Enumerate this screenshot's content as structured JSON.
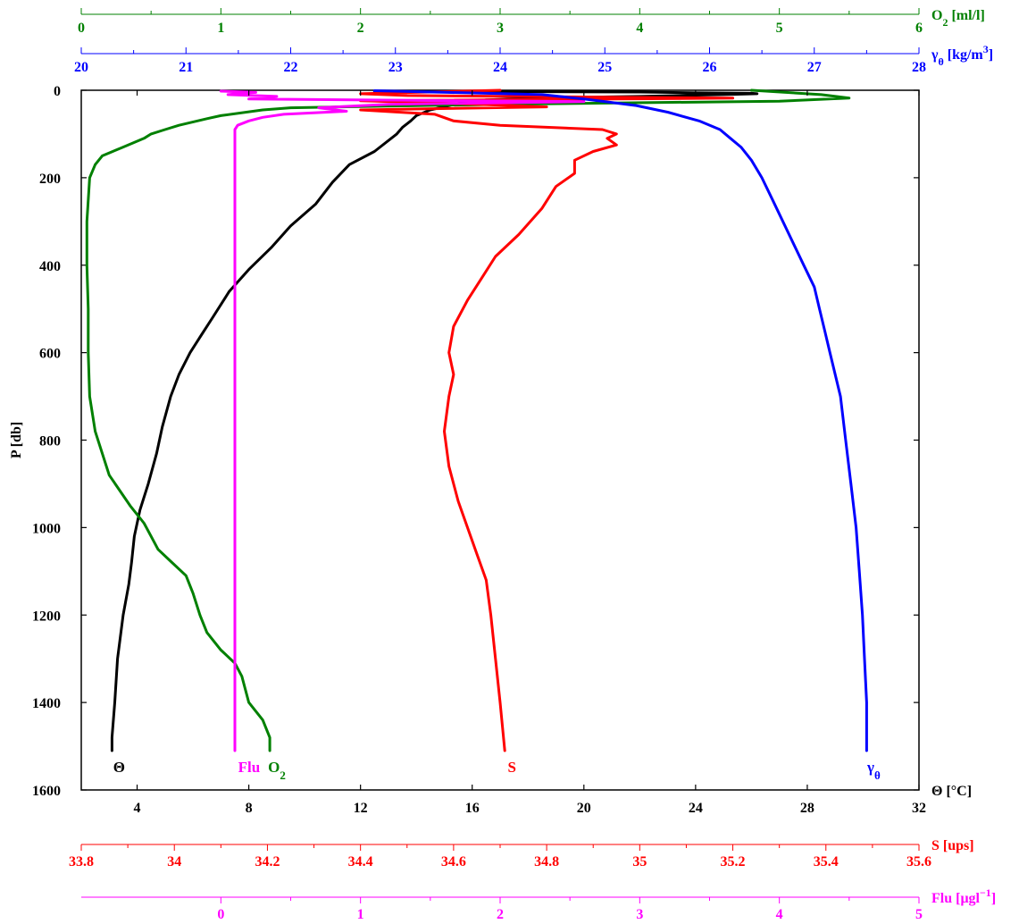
{
  "chart_data": {
    "type": "line",
    "y_axis": {
      "label": "P [db]",
      "range": [
        0,
        1600
      ],
      "ticks": [
        0,
        200,
        400,
        600,
        800,
        1000,
        1200,
        1400,
        1600
      ],
      "inverted": true
    },
    "x_axes": {
      "theta": {
        "label": "Θ [°C]",
        "range": [
          2,
          32
        ],
        "ticks": [
          4,
          8,
          12,
          16,
          20,
          24,
          28,
          32
        ],
        "position": "bottom",
        "color": "#000000"
      },
      "salinity": {
        "label": "S [ups]",
        "range": [
          33.8,
          35.6
        ],
        "ticks": [
          "33.8",
          "34",
          "34.2",
          "34.4",
          "34.6",
          "34.8",
          "35",
          "35.2",
          "35.4",
          "35.6"
        ],
        "position": "below",
        "color": "#ff0000"
      },
      "fluorescence": {
        "label_main": "Flu [μgl",
        "label_sup": "−1",
        "label_end": "]",
        "range": [
          -1,
          5
        ],
        "ticks": [
          0,
          1,
          2,
          3,
          4,
          5
        ],
        "position": "below",
        "color": "#ff00ff"
      },
      "oxygen": {
        "label_main": "O",
        "label_sub": "2",
        "label_end": " [ml/l]",
        "range": [
          0,
          6
        ],
        "ticks": [
          0,
          1,
          2,
          3,
          4,
          5,
          6
        ],
        "position": "top",
        "color": "#008000"
      },
      "density": {
        "label_main": "γ",
        "label_sub": "θ",
        "label_mid": " [kg/m",
        "label_sup": "3",
        "label_end": "]",
        "range": [
          20,
          28
        ],
        "ticks": [
          20,
          21,
          22,
          23,
          24,
          25,
          26,
          27,
          28
        ],
        "position": "top",
        "color": "#0000ff"
      }
    },
    "series": [
      {
        "key": "theta",
        "axis": "theta",
        "color": "#000000",
        "label_main": "Θ",
        "label_sub": "",
        "points": [
          [
            12.5,
            2
          ],
          [
            22,
            4
          ],
          [
            24,
            6
          ],
          [
            26,
            7
          ],
          [
            26.2,
            8
          ],
          [
            25,
            10
          ],
          [
            22,
            14
          ],
          [
            19,
            17
          ],
          [
            16.5,
            22
          ],
          [
            15.5,
            30
          ],
          [
            14.5,
            45
          ],
          [
            14,
            58
          ],
          [
            13.8,
            70
          ],
          [
            13.5,
            85
          ],
          [
            13.3,
            100
          ],
          [
            12.5,
            140
          ],
          [
            11.6,
            170
          ],
          [
            11,
            210
          ],
          [
            10.4,
            260
          ],
          [
            9.5,
            310
          ],
          [
            8.8,
            360
          ],
          [
            8,
            410
          ],
          [
            7.3,
            460
          ],
          [
            6.7,
            520
          ],
          [
            6.3,
            560
          ],
          [
            5.9,
            600
          ],
          [
            5.5,
            650
          ],
          [
            5.2,
            700
          ],
          [
            4.9,
            770
          ],
          [
            4.7,
            830
          ],
          [
            4.4,
            900
          ],
          [
            4.1,
            960
          ],
          [
            3.9,
            1020
          ],
          [
            3.8,
            1080
          ],
          [
            3.7,
            1130
          ],
          [
            3.5,
            1200
          ],
          [
            3.3,
            1300
          ],
          [
            3.2,
            1400
          ],
          [
            3.1,
            1480
          ],
          [
            3.1,
            1510
          ]
        ]
      },
      {
        "key": "oxygen",
        "axis": "oxygen",
        "color": "#008000",
        "label_main": "O",
        "label_sub": "2",
        "points": [
          [
            4.8,
            0
          ],
          [
            5.3,
            10
          ],
          [
            5.5,
            18
          ],
          [
            5,
            25
          ],
          [
            3,
            32
          ],
          [
            1.5,
            40
          ],
          [
            1.3,
            45
          ],
          [
            1.0,
            58
          ],
          [
            0.9,
            65
          ],
          [
            0.7,
            80
          ],
          [
            0.6,
            90
          ],
          [
            0.5,
            100
          ],
          [
            0.45,
            110
          ],
          [
            0.3,
            130
          ],
          [
            0.15,
            150
          ],
          [
            0.1,
            170
          ],
          [
            0.06,
            200
          ],
          [
            0.04,
            300
          ],
          [
            0.04,
            400
          ],
          [
            0.05,
            500
          ],
          [
            0.05,
            600
          ],
          [
            0.06,
            700
          ],
          [
            0.1,
            780
          ],
          [
            0.2,
            880
          ],
          [
            0.35,
            950
          ],
          [
            0.45,
            990
          ],
          [
            0.5,
            1020
          ],
          [
            0.55,
            1050
          ],
          [
            0.65,
            1080
          ],
          [
            0.75,
            1110
          ],
          [
            0.8,
            1150
          ],
          [
            0.85,
            1200
          ],
          [
            0.9,
            1240
          ],
          [
            1.0,
            1280
          ],
          [
            1.1,
            1310
          ],
          [
            1.15,
            1340
          ],
          [
            1.2,
            1400
          ],
          [
            1.3,
            1440
          ],
          [
            1.35,
            1480
          ],
          [
            1.35,
            1510
          ]
        ]
      },
      {
        "key": "salinity",
        "axis": "salinity",
        "color": "#ff0000",
        "label_main": "S",
        "label_sub": "",
        "points": [
          [
            34.7,
            0
          ],
          [
            34.4,
            8
          ],
          [
            34.5,
            12
          ],
          [
            35.2,
            18
          ],
          [
            34.4,
            24
          ],
          [
            34.6,
            30
          ],
          [
            34.8,
            38
          ],
          [
            34.4,
            45
          ],
          [
            34.56,
            55
          ],
          [
            34.6,
            70
          ],
          [
            34.7,
            80
          ],
          [
            34.92,
            90
          ],
          [
            34.95,
            100
          ],
          [
            34.93,
            110
          ],
          [
            34.95,
            125
          ],
          [
            34.9,
            140
          ],
          [
            34.86,
            160
          ],
          [
            34.86,
            190
          ],
          [
            34.82,
            220
          ],
          [
            34.79,
            270
          ],
          [
            34.74,
            330
          ],
          [
            34.69,
            380
          ],
          [
            34.66,
            430
          ],
          [
            34.63,
            480
          ],
          [
            34.6,
            540
          ],
          [
            34.59,
            600
          ],
          [
            34.6,
            650
          ],
          [
            34.59,
            700
          ],
          [
            34.58,
            780
          ],
          [
            34.59,
            860
          ],
          [
            34.61,
            940
          ],
          [
            34.63,
            1000
          ],
          [
            34.65,
            1060
          ],
          [
            34.67,
            1120
          ],
          [
            34.68,
            1200
          ],
          [
            34.69,
            1300
          ],
          [
            34.7,
            1400
          ],
          [
            34.71,
            1510
          ]
        ]
      },
      {
        "key": "fluorescence",
        "axis": "fluorescence",
        "color": "#ff00ff",
        "label_main": "Flu",
        "label_sub": "",
        "points": [
          [
            0.0,
            2
          ],
          [
            0.25,
            5
          ],
          [
            0.05,
            10
          ],
          [
            0.4,
            14
          ],
          [
            0.2,
            20
          ],
          [
            2.6,
            26
          ],
          [
            1.2,
            32
          ],
          [
            0.7,
            40
          ],
          [
            0.9,
            48
          ],
          [
            0.45,
            55
          ],
          [
            0.3,
            62
          ],
          [
            0.2,
            70
          ],
          [
            0.12,
            80
          ],
          [
            0.1,
            90
          ],
          [
            0.1,
            100
          ],
          [
            0.1,
            120
          ],
          [
            0.1,
            130
          ],
          [
            0.1,
            135
          ],
          [
            0.1,
            150
          ],
          [
            0.1,
            170
          ],
          [
            0.1,
            200
          ],
          [
            0.1,
            300
          ],
          [
            0.1,
            400
          ],
          [
            0.1,
            600
          ],
          [
            0.1,
            800
          ],
          [
            0.1,
            1000
          ],
          [
            0.1,
            1200
          ],
          [
            0.1,
            1400
          ],
          [
            0.1,
            1510
          ]
        ]
      },
      {
        "key": "density",
        "axis": "density",
        "color": "#0000ff",
        "label_main": "γ",
        "label_sub": "θ",
        "points": [
          [
            22.8,
            1
          ],
          [
            23.5,
            5
          ],
          [
            24.4,
            10
          ],
          [
            24.8,
            20
          ],
          [
            25.3,
            35
          ],
          [
            25.6,
            50
          ],
          [
            25.9,
            70
          ],
          [
            26.1,
            90
          ],
          [
            26.2,
            110
          ],
          [
            26.3,
            130
          ],
          [
            26.4,
            160
          ],
          [
            26.5,
            200
          ],
          [
            26.6,
            250
          ],
          [
            26.7,
            300
          ],
          [
            26.8,
            350
          ],
          [
            26.9,
            400
          ],
          [
            27.0,
            450
          ],
          [
            27.05,
            500
          ],
          [
            27.1,
            550
          ],
          [
            27.15,
            600
          ],
          [
            27.2,
            650
          ],
          [
            27.25,
            700
          ],
          [
            27.3,
            800
          ],
          [
            27.35,
            900
          ],
          [
            27.4,
            1000
          ],
          [
            27.43,
            1100
          ],
          [
            27.46,
            1200
          ],
          [
            27.48,
            1300
          ],
          [
            27.5,
            1400
          ],
          [
            27.5,
            1510
          ]
        ]
      }
    ]
  }
}
